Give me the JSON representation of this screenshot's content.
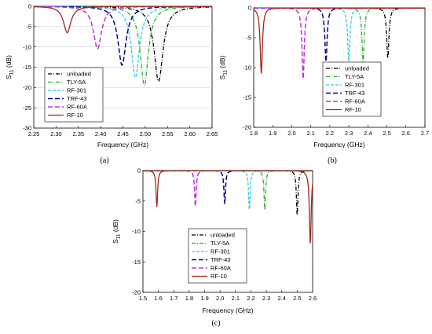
{
  "series_styles": [
    {
      "name": "unloaded",
      "color": "#000000",
      "dash": "5,2,1,2",
      "width": 1.3
    },
    {
      "name": "TLY-5A",
      "color": "#22b022",
      "dash": "5,2,1,2",
      "width": 1.3
    },
    {
      "name": "RF-301",
      "color": "#33ccdd",
      "dash": "4,2",
      "width": 1.3
    },
    {
      "name": "TRF-43",
      "color": "#00008b",
      "dash": "6,3",
      "width": 1.5
    },
    {
      "name": "RF-60A",
      "color": "#bb33dd",
      "dash": "6,3",
      "width": 1.5
    },
    {
      "name": "RF-10",
      "color": "#a0281a",
      "dash": "",
      "width": 1.3
    }
  ],
  "chart_data": [
    {
      "type": "line",
      "panel_caption": "(a)",
      "xlabel": "Frequency (GHz)",
      "ylabel_main": "S",
      "ylabel_sub": "11",
      "ylabel_unit": " (dB)",
      "xlim": [
        2.25,
        2.65
      ],
      "ylim": [
        -30,
        0
      ],
      "x_ticks": [
        "2.25",
        "2.30",
        "2.35",
        "2.40",
        "2.45",
        "2.50",
        "2.55",
        "2.60",
        "2.65"
      ],
      "y_ticks": [
        "0",
        "-5",
        "-10",
        "-15",
        "-20",
        "-25",
        "-30"
      ],
      "grid": true,
      "legend_position": "bottom-left",
      "series": [
        {
          "name": "unloaded",
          "resonance_x": 2.53,
          "min_y": -18.5,
          "width": 0.012
        },
        {
          "name": "TLY-5A",
          "resonance_x": 2.498,
          "min_y": -19.5,
          "width": 0.011
        },
        {
          "name": "RF-301",
          "resonance_x": 2.478,
          "min_y": -17.5,
          "width": 0.011
        },
        {
          "name": "TRF-43",
          "resonance_x": 2.448,
          "min_y": -14.5,
          "width": 0.011
        },
        {
          "name": "RF-60A",
          "resonance_x": 2.393,
          "min_y": -10.5,
          "width": 0.011
        },
        {
          "name": "RF-10",
          "resonance_x": 2.325,
          "min_y": -6.5,
          "width": 0.01
        }
      ]
    },
    {
      "type": "line",
      "panel_caption": "(b)",
      "xlabel": "Frequency (GHz)",
      "ylabel_main": "S",
      "ylabel_sub": "11",
      "ylabel_unit": " (dB)",
      "xlim": [
        1.8,
        2.7
      ],
      "ylim": [
        -20,
        0
      ],
      "x_ticks": [
        "1.8",
        "1.9",
        "2.0",
        "2.1",
        "2.2",
        "2.3",
        "2.4",
        "2.5",
        "2.6",
        "2.7"
      ],
      "y_ticks": [
        "0",
        "-5",
        "-10",
        "-15",
        "-20"
      ],
      "grid": false,
      "legend_position": "bottom-right",
      "series": [
        {
          "name": "unloaded",
          "resonance_x": 2.505,
          "min_y": -8.5,
          "width": 0.007
        },
        {
          "name": "TLY-5A",
          "resonance_x": 2.375,
          "min_y": -9.0,
          "width": 0.007
        },
        {
          "name": "RF-301",
          "resonance_x": 2.3,
          "min_y": -9.0,
          "width": 0.007
        },
        {
          "name": "TRF-43",
          "resonance_x": 2.18,
          "min_y": -9.0,
          "width": 0.007
        },
        {
          "name": "RF-60A",
          "resonance_x": 2.06,
          "min_y": -12.0,
          "width": 0.007
        },
        {
          "name": "RF-10",
          "resonance_x": 1.84,
          "min_y": -11.0,
          "width": 0.007
        }
      ]
    },
    {
      "type": "line",
      "panel_caption": "(c)",
      "xlabel": "Frequency (GHz)",
      "ylabel_main": "S",
      "ylabel_sub": "11",
      "ylabel_unit": " (dB)",
      "xlim": [
        1.5,
        2.6
      ],
      "ylim": [
        -20,
        0
      ],
      "x_ticks": [
        "1.5",
        "1.6",
        "1.7",
        "1.8",
        "1.9",
        "2.0",
        "2.1",
        "2.2",
        "2.3",
        "2.4",
        "2.5",
        "2.6"
      ],
      "y_ticks": [
        "0",
        "-5",
        "-10",
        "-15",
        "-20"
      ],
      "grid": false,
      "legend_position": "bottom-center",
      "series": [
        {
          "name": "unloaded",
          "resonance_x": 2.5,
          "min_y": -7.5,
          "width": 0.006
        },
        {
          "name": "TLY-5A",
          "resonance_x": 2.29,
          "min_y": -6.5,
          "width": 0.006
        },
        {
          "name": "RF-301",
          "resonance_x": 2.19,
          "min_y": -6.5,
          "width": 0.006
        },
        {
          "name": "TRF-43",
          "resonance_x": 2.03,
          "min_y": -5.5,
          "width": 0.006
        },
        {
          "name": "RF-60A",
          "resonance_x": 1.84,
          "min_y": -6.0,
          "width": 0.006
        },
        {
          "name": "RF-10",
          "resonance_x": 1.59,
          "min_y": -6.0,
          "width": 0.006
        },
        {
          "name": "RF-10",
          "resonance_x": 2.585,
          "min_y": -12.0,
          "width": 0.007,
          "secondary": true
        }
      ]
    }
  ]
}
